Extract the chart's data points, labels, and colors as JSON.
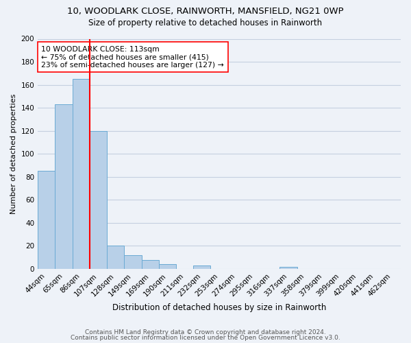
{
  "title": "10, WOODLARK CLOSE, RAINWORTH, MANSFIELD, NG21 0WP",
  "subtitle": "Size of property relative to detached houses in Rainworth",
  "xlabel": "Distribution of detached houses by size in Rainworth",
  "ylabel": "Number of detached properties",
  "bar_labels": [
    "44sqm",
    "65sqm",
    "86sqm",
    "107sqm",
    "128sqm",
    "149sqm",
    "169sqm",
    "190sqm",
    "211sqm",
    "232sqm",
    "253sqm",
    "274sqm",
    "295sqm",
    "316sqm",
    "337sqm",
    "358sqm",
    "379sqm",
    "399sqm",
    "420sqm",
    "441sqm",
    "462sqm"
  ],
  "bar_values": [
    85,
    143,
    165,
    120,
    20,
    12,
    8,
    4,
    0,
    3,
    0,
    0,
    0,
    0,
    2,
    0,
    0,
    0,
    0,
    0,
    0
  ],
  "bar_color": "#b8d0e8",
  "bar_edge_color": "#6aaad4",
  "vline_color": "red",
  "vline_pos": 2.5,
  "annotation_text": "10 WOODLARK CLOSE: 113sqm\n← 75% of detached houses are smaller (415)\n23% of semi-detached houses are larger (127) →",
  "annotation_box_color": "white",
  "annotation_box_edge_color": "red",
  "ylim": [
    0,
    200
  ],
  "yticks": [
    0,
    20,
    40,
    60,
    80,
    100,
    120,
    140,
    160,
    180,
    200
  ],
  "footer_line1": "Contains HM Land Registry data © Crown copyright and database right 2024.",
  "footer_line2": "Contains public sector information licensed under the Open Government Licence v3.0.",
  "background_color": "#eef2f8",
  "grid_color": "#c5cfe0",
  "title_fontsize": 9.5,
  "subtitle_fontsize": 8.5,
  "ylabel_fontsize": 8,
  "xlabel_fontsize": 8.5,
  "tick_fontsize": 7.5,
  "footer_fontsize": 6.5
}
